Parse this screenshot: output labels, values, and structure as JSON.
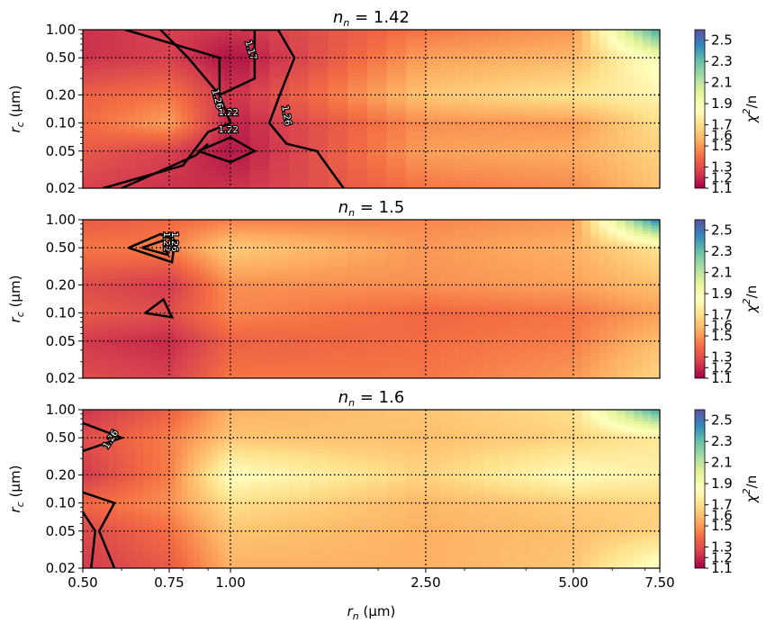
{
  "chart_data": {
    "type": "heatmap",
    "x_label": "r_n (μm)",
    "y_label": "r_c (μm)",
    "colorbar_label": "χ²/n",
    "colormap": "Spectral",
    "x_ticks": [
      0.5,
      0.75,
      1.0,
      2.5,
      5.0,
      7.5
    ],
    "x_tick_labels": [
      "0.50",
      "0.75",
      "1.00",
      "2.50",
      "5.00",
      "7.50"
    ],
    "y_ticks": [
      0.02,
      0.05,
      0.1,
      0.2,
      0.5,
      1.0
    ],
    "y_tick_labels": [
      "0.02",
      "0.05",
      "0.10",
      "0.20",
      "0.50",
      "1.00"
    ],
    "colorbar_ticks": [
      "1.1",
      "1.2",
      "1.3",
      "1.5",
      "1.6",
      "1.7",
      "1.9",
      "2.1",
      "2.3",
      "2.5"
    ],
    "colorbar_range": [
      1.1,
      2.6
    ],
    "grid": "dotted",
    "panels": [
      {
        "title": "n_n = 1.42",
        "title_main": "n",
        "title_sub": "n",
        "title_rest": " = 1.42",
        "values": [
          [
            1.26,
            1.22,
            1.22,
            1.42,
            1.47,
            1.62
          ],
          [
            1.34,
            1.26,
            1.15,
            1.52,
            1.55,
            1.66
          ],
          [
            1.39,
            1.52,
            1.18,
            1.48,
            1.5,
            1.7
          ],
          [
            1.36,
            1.42,
            1.22,
            1.62,
            1.72,
            1.8
          ],
          [
            1.22,
            1.26,
            1.14,
            1.52,
            1.58,
            1.9
          ],
          [
            1.22,
            1.26,
            1.22,
            1.42,
            1.5,
            2.4
          ]
        ],
        "contour_labels": [
          "1.17",
          "1.26",
          "1.22",
          "1.22",
          "1.26"
        ]
      },
      {
        "title": "n_n = 1.5",
        "title_main": "n",
        "title_sub": "n",
        "title_rest": " = 1.5",
        "values": [
          [
            1.3,
            1.26,
            1.42,
            1.42,
            1.5,
            1.68
          ],
          [
            1.24,
            1.2,
            1.36,
            1.4,
            1.44,
            1.6
          ],
          [
            1.34,
            1.3,
            1.46,
            1.38,
            1.42,
            1.52
          ],
          [
            1.3,
            1.24,
            1.48,
            1.48,
            1.52,
            1.6
          ],
          [
            1.42,
            1.44,
            1.64,
            1.5,
            1.56,
            1.72
          ],
          [
            1.34,
            1.38,
            1.44,
            1.46,
            1.5,
            2.5
          ]
        ],
        "contour_labels": [
          "1.22",
          "1.26"
        ]
      },
      {
        "title": "n_n = 1.6",
        "title_main": "n",
        "title_sub": "n",
        "title_rest": " = 1.6",
        "values": [
          [
            1.24,
            1.34,
            1.56,
            1.56,
            1.62,
            1.9
          ],
          [
            1.28,
            1.4,
            1.62,
            1.56,
            1.6,
            1.66
          ],
          [
            1.38,
            1.48,
            1.7,
            1.58,
            1.64,
            1.66
          ],
          [
            1.24,
            1.44,
            1.86,
            1.66,
            1.84,
            1.78
          ],
          [
            1.3,
            1.44,
            1.62,
            1.6,
            1.66,
            1.74
          ],
          [
            1.22,
            1.36,
            1.56,
            1.62,
            1.7,
            2.4
          ]
        ],
        "contour_labels": [
          "1.26"
        ]
      }
    ]
  },
  "labels": {
    "x_main": "r",
    "x_sub": "n",
    "x_unit": " (μm)",
    "y_main": "r",
    "y_sub": "c",
    "y_unit": " (μm)",
    "cb_main": "χ",
    "cb_sup": "2",
    "cb_rest": "/n"
  }
}
